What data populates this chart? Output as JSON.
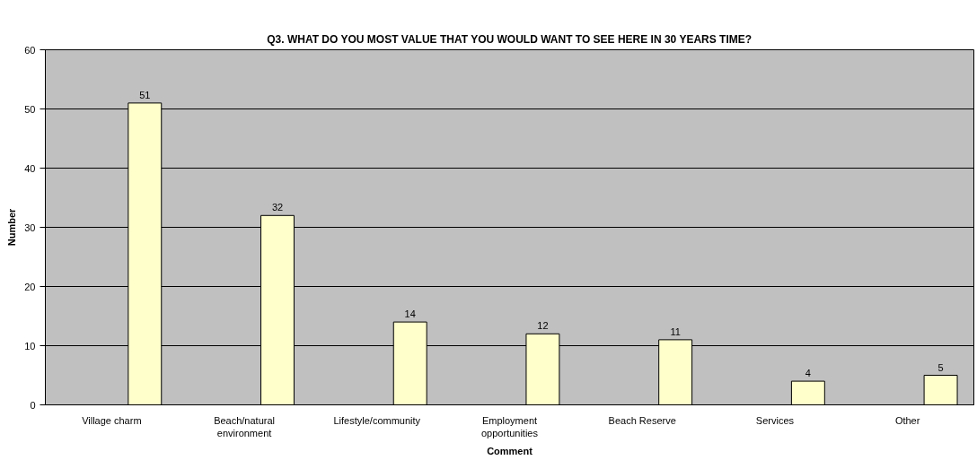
{
  "chart_data": {
    "type": "bar",
    "title": "Q3. WHAT DO YOU MOST VALUE THAT YOU WOULD WANT TO SEE HERE IN 30 YEARS TIME?",
    "xlabel": "Comment",
    "ylabel": "Number",
    "categories": [
      "Village charm",
      "Beach/natural environment",
      "Lifestyle/community",
      "Employment opportunities",
      "Beach Reserve",
      "Services",
      "Other"
    ],
    "values": [
      51,
      32,
      14,
      12,
      11,
      4,
      5
    ],
    "color": "#ffffcc",
    "ylim": [
      0,
      60
    ],
    "yticks": [
      0,
      10,
      20,
      30,
      40,
      50,
      60
    ],
    "grid": "y",
    "data_labels": true
  }
}
